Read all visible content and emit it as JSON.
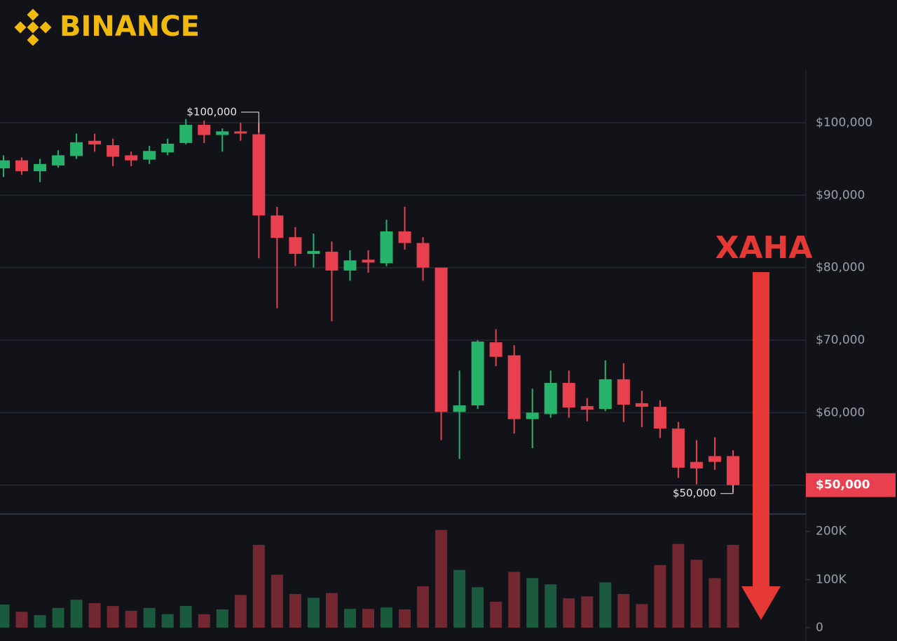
{
  "chart_data": {
    "type": "candlestick",
    "logo": "BINANCE",
    "up_color": "#27b36b",
    "down_color": "#e8404f",
    "annotation_color": "#e53935",
    "caption": "ХАНА",
    "open": [
      93700,
      94800,
      93300,
      94100,
      95400,
      97500,
      96900,
      95500,
      94900,
      95900,
      97200,
      99700,
      98300,
      98800,
      98400,
      87200,
      84200,
      81900,
      82200,
      79600,
      81100,
      80600,
      85000,
      83400,
      80000,
      60100,
      61000,
      69700,
      67900,
      59100,
      59800,
      64100,
      60900,
      60500,
      64600,
      61300,
      60800,
      57800,
      53200,
      54000,
      54000
    ],
    "high": [
      95500,
      95200,
      95000,
      96200,
      98500,
      98500,
      97800,
      96000,
      96800,
      97800,
      100500,
      100300,
      99200,
      100000,
      100000,
      88400,
      85600,
      84700,
      83600,
      82400,
      82400,
      86600,
      88400,
      84200,
      80000,
      65800,
      70000,
      71500,
      69300,
      63300,
      65800,
      65800,
      62000,
      67200,
      66800,
      63000,
      61700,
      58700,
      56200,
      56600,
      54800
    ],
    "low": [
      92500,
      92800,
      91800,
      93800,
      95000,
      96000,
      94000,
      94000,
      94300,
      95500,
      97000,
      97200,
      96000,
      97500,
      81300,
      74400,
      80200,
      80000,
      72600,
      78200,
      79300,
      80200,
      82500,
      78200,
      56200,
      53600,
      60500,
      66400,
      57100,
      55100,
      59300,
      59300,
      58800,
      60200,
      58700,
      58000,
      56500,
      51000,
      50100,
      52100,
      49000
    ],
    "close": [
      94800,
      93300,
      94300,
      95500,
      97300,
      97000,
      95300,
      94800,
      96100,
      97100,
      99700,
      98300,
      98800,
      98500,
      87200,
      84100,
      81900,
      82300,
      79600,
      81000,
      80700,
      85000,
      83400,
      80000,
      60100,
      61000,
      69800,
      67700,
      59100,
      60000,
      64100,
      60700,
      60400,
      64600,
      61100,
      60800,
      57800,
      52400,
      52300,
      53200,
      50000
    ],
    "volume": [
      48000,
      33000,
      26000,
      41000,
      58000,
      51000,
      45000,
      35000,
      41000,
      28000,
      45000,
      28000,
      38000,
      68000,
      172000,
      110000,
      70000,
      62000,
      72000,
      39000,
      39000,
      42000,
      38000,
      86000,
      203000,
      120000,
      84000,
      54000,
      116000,
      103000,
      90000,
      61000,
      65000,
      94000,
      70000,
      49000,
      130000,
      174000,
      141000,
      103000,
      172000
    ],
    "ylim": [
      46100,
      107250
    ],
    "yticks": [
      {
        "value": 50000,
        "label": "$50,000"
      },
      {
        "value": 60000,
        "label": "$60,000"
      },
      {
        "value": 70000,
        "label": "$70,000"
      },
      {
        "value": 80000,
        "label": "$80,000"
      },
      {
        "value": 90000,
        "label": "$90,000"
      },
      {
        "value": 100000,
        "label": "$100,000"
      }
    ],
    "volume_ylim": [
      0,
      236000
    ],
    "volume_yticks": [
      0,
      {
        "value": 100000,
        "label": "100K"
      },
      {
        "value": 200000,
        "label": "200K"
      }
    ],
    "high_label": {
      "value": 100000,
      "label": "$100,000"
    },
    "low_label": {
      "value": 50000,
      "label": "$50,000"
    },
    "last_price": {
      "value": 50000,
      "label": "$50,000"
    },
    "grid": true
  }
}
